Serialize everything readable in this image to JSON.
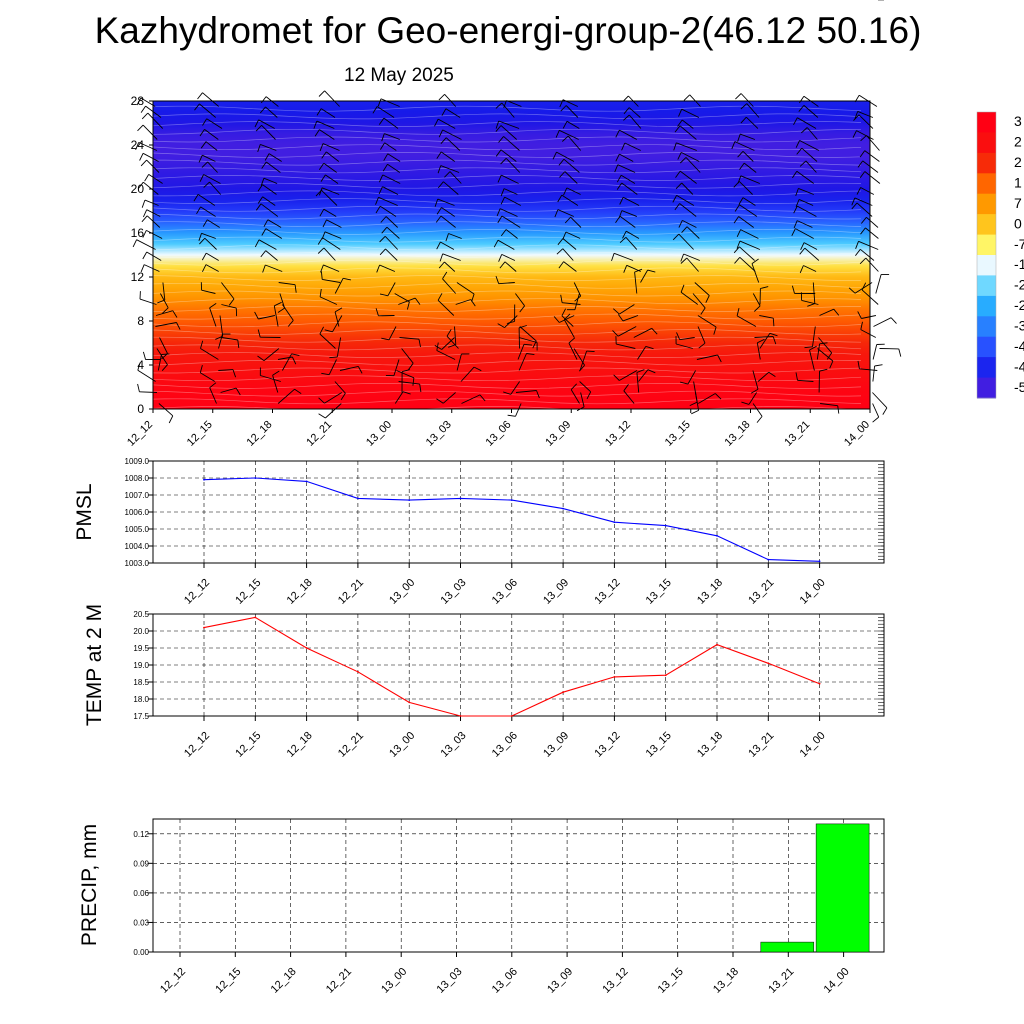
{
  "page": {
    "title": "Kazhydromet for Geo-energi-group-2(46.12 50.16)",
    "subtitle": "12 May 2025"
  },
  "chart_data": [
    {
      "type": "heatmap",
      "name": "upper-air temperature and wind cross-section",
      "categories": [
        "12_12",
        "12_15",
        "12_18",
        "12_21",
        "13_00",
        "13_03",
        "13_06",
        "13_09",
        "13_12",
        "13_15",
        "13_18",
        "13_21",
        "14_00"
      ],
      "y_ticks": [
        "0",
        "4",
        "8",
        "12",
        "16",
        "20",
        "24",
        "28"
      ],
      "ylim": [
        0,
        28
      ],
      "levels": [
        0,
        1,
        2,
        3,
        4,
        5,
        6,
        7,
        8,
        9,
        10,
        11,
        12,
        13,
        14,
        15,
        16,
        17,
        18,
        19,
        20,
        21,
        22,
        23,
        24,
        25,
        26,
        27,
        28
      ],
      "values_C": [
        30,
        29,
        28,
        26,
        24,
        22,
        19,
        16,
        13,
        10,
        6,
        3,
        0,
        -6,
        -15,
        -24,
        -32,
        -40,
        -46,
        -50,
        -53,
        -54,
        -55,
        -56,
        -56,
        -55,
        -53,
        -51,
        -50
      ],
      "colorbar_labels": [
        "3",
        "2",
        "2",
        "1",
        "7",
        "0",
        "-7",
        "-1",
        "-2",
        "-2",
        "-3",
        "-4",
        "-4",
        "-5"
      ],
      "wind_barbs": true
    },
    {
      "type": "line",
      "ylabel": "PMSL",
      "color": "#0000ff",
      "categories": [
        "12_12",
        "12_15",
        "12_18",
        "12_21",
        "13_00",
        "13_03",
        "13_06",
        "13_09",
        "13_12",
        "13_15",
        "13_18",
        "13_21",
        "14_00"
      ],
      "values": [
        1007.9,
        1008.0,
        1007.8,
        1006.8,
        1006.7,
        1006.8,
        1006.7,
        1006.2,
        1005.4,
        1005.2,
        1004.6,
        1003.2,
        1003.1
      ],
      "ylim": [
        1003.0,
        1009.0
      ],
      "y_ticks": [
        "1003.0",
        "1004.0",
        "1005.0",
        "1006.0",
        "1007.0",
        "1008.0",
        "1009.0"
      ],
      "grid": true
    },
    {
      "type": "line",
      "ylabel": "TEMP at 2 M",
      "color": "#ff0000",
      "categories": [
        "12_12",
        "12_15",
        "12_18",
        "12_21",
        "13_00",
        "13_03",
        "13_06",
        "13_09",
        "13_12",
        "13_15",
        "13_18",
        "13_21",
        "14_00"
      ],
      "values": [
        20.1,
        20.4,
        19.5,
        18.8,
        17.9,
        17.5,
        17.5,
        18.2,
        18.65,
        18.7,
        19.6,
        19.05,
        18.45
      ],
      "ylim": [
        17.5,
        20.5
      ],
      "y_ticks": [
        "17.5",
        "18.0",
        "18.5",
        "19.0",
        "19.5",
        "20.0",
        "20.5"
      ],
      "grid": true
    },
    {
      "type": "bar",
      "ylabel": "PRECIP, mm",
      "color": "#00ff00",
      "categories": [
        "12_12",
        "12_15",
        "12_18",
        "12_21",
        "13_00",
        "13_03",
        "13_06",
        "13_09",
        "13_12",
        "13_15",
        "13_18",
        "13_21",
        "14_00"
      ],
      "values": [
        0,
        0,
        0,
        0,
        0,
        0,
        0,
        0,
        0,
        0,
        0,
        0.01,
        0.13
      ],
      "ylim": [
        0,
        0.135
      ],
      "y_ticks": [
        "0.00",
        "0.03",
        "0.06",
        "0.09",
        "0.12"
      ],
      "grid": true
    }
  ]
}
